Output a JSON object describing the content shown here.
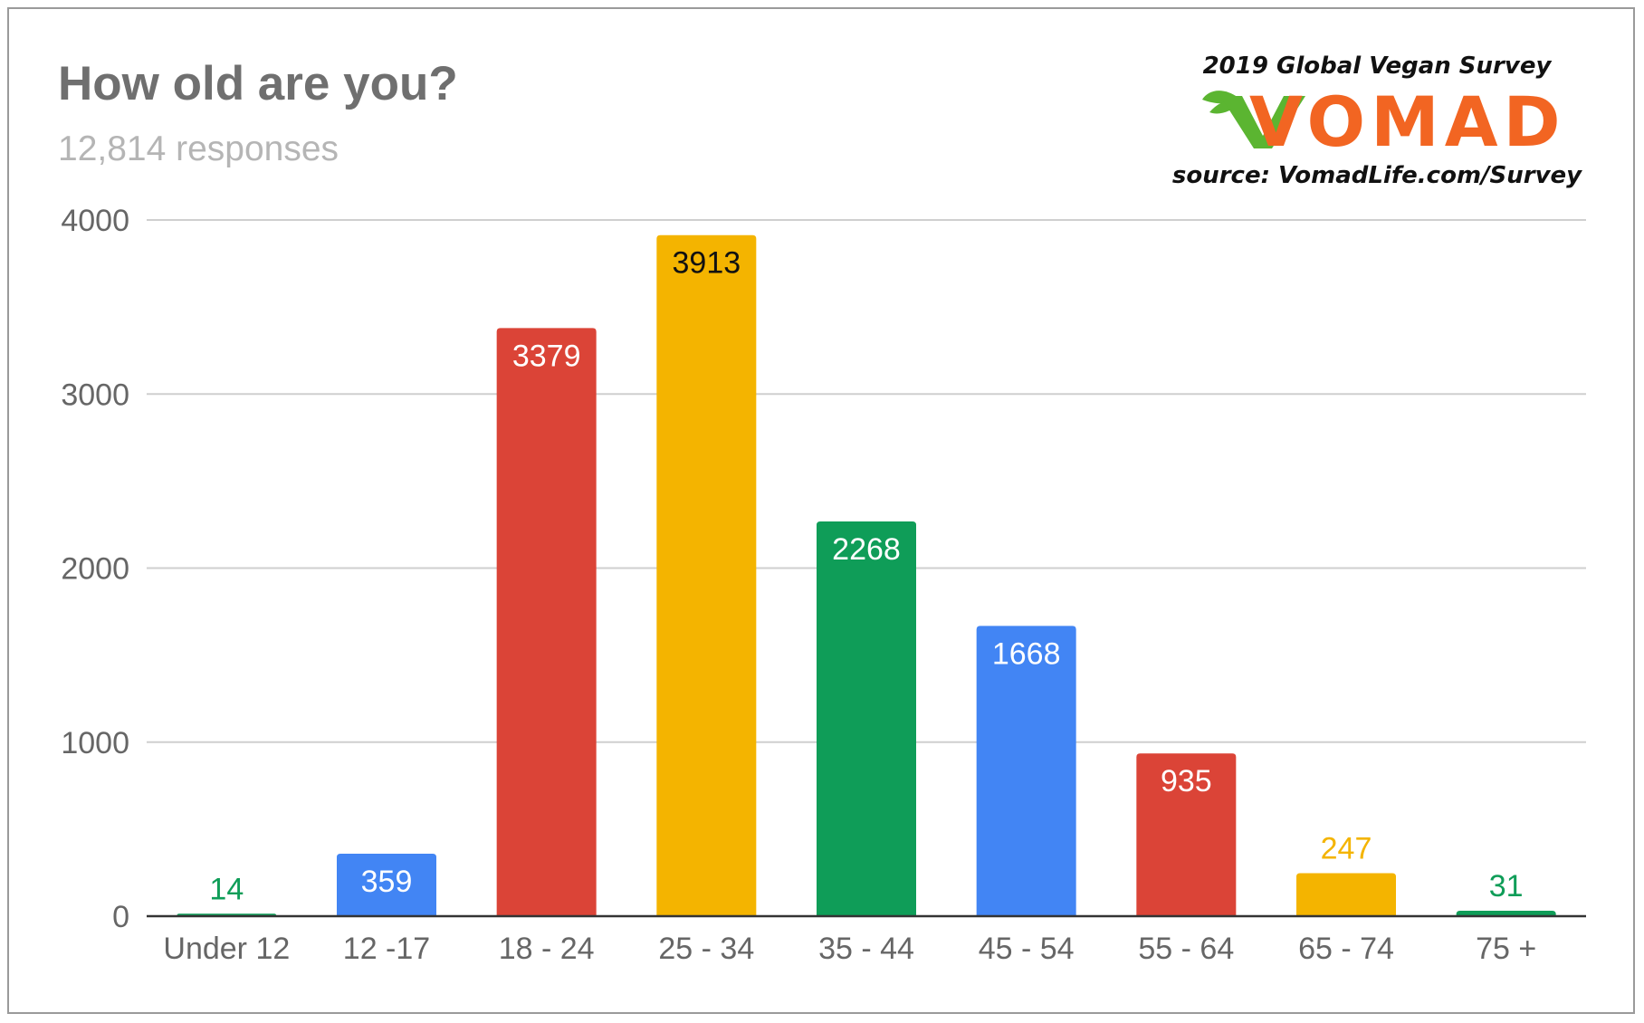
{
  "header": {
    "title": "How old are you?",
    "subtitle": "12,814 responses"
  },
  "branding": {
    "survey_name": "2019 Global Vegan Survey",
    "logo_text": "VOMAD",
    "source": "source: VomadLife.com/Survey",
    "logo_green": "#5bb531",
    "logo_orange": "#f26522"
  },
  "chart_data": {
    "type": "bar",
    "categories": [
      "Under 12",
      "12 -17",
      "18 - 24",
      "25 - 34",
      "35 - 44",
      "45 - 54",
      "55 - 64",
      "65 - 74",
      "75 +"
    ],
    "values": [
      14,
      359,
      3379,
      3913,
      2268,
      1668,
      935,
      247,
      31
    ],
    "data_labels": [
      "14",
      "359",
      "3379",
      "3913",
      "2268",
      "1668",
      "935",
      "247",
      "31"
    ],
    "bar_colors": [
      "#0f9d58",
      "#4285f4",
      "#db4437",
      "#f4b400",
      "#0f9d58",
      "#4285f4",
      "#db4437",
      "#f4b400",
      "#0f9d58"
    ],
    "title": "How old are you?",
    "subtitle": "12,814 responses",
    "xlabel": "",
    "ylabel": "",
    "ylim": [
      0,
      4000
    ],
    "yticks": [
      0,
      1000,
      2000,
      3000,
      4000
    ],
    "ytick_labels": [
      "0",
      "1000",
      "2000",
      "3000",
      "4000"
    ],
    "grid": true,
    "legend": "none"
  }
}
